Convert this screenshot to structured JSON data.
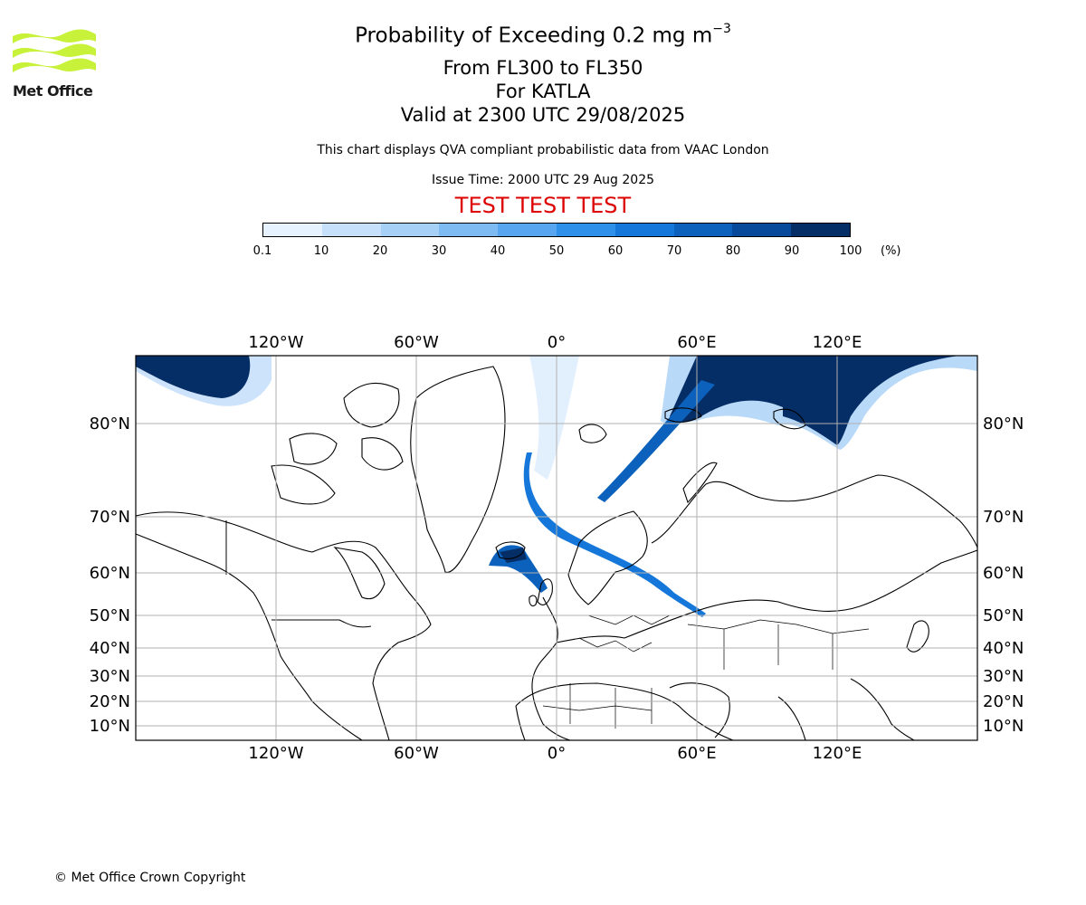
{
  "logo": {
    "wordmark": "Met Office",
    "accent_color": "#c8f23a"
  },
  "title": {
    "main": "Probability of Exceeding 0.2 mg m",
    "superscript": "−3",
    "line2": "From FL300 to FL350",
    "line3": "For KATLA",
    "line4": "Valid at 2300 UTC 29/08/2025"
  },
  "info": "This chart displays QVA compliant probabilistic data from VAAC London",
  "issue_time": "Issue Time: 2000 UTC 29 Aug 2025",
  "banner": {
    "text": "TEST TEST TEST",
    "color": "#dd0000"
  },
  "colorbar": {
    "ticks": [
      "0.1",
      "10",
      "20",
      "30",
      "40",
      "50",
      "60",
      "70",
      "80",
      "90",
      "100"
    ],
    "unit": "(%)",
    "colors": [
      "#e6f2ff",
      "#c6e0fb",
      "#a7d0f7",
      "#7fbbf3",
      "#57a6ef",
      "#2f90ea",
      "#1577d9",
      "#0b61bc",
      "#07499a",
      "#062e66"
    ]
  },
  "map": {
    "lon_labels_top": [
      "120°W",
      "60°W",
      "0°",
      "60°E",
      "120°E"
    ],
    "lon_labels_bottom": [
      "120°W",
      "60°W",
      "0°",
      "60°E",
      "120°E"
    ],
    "lat_labels_left": [
      "80°N",
      "70°N",
      "60°N",
      "50°N",
      "40°N",
      "30°N",
      "20°N",
      "10°N"
    ],
    "lat_labels_right": [
      "80°N",
      "70°N",
      "60°N",
      "50°N",
      "40°N",
      "30°N",
      "20°N",
      "10°N"
    ],
    "gridline_color": "#b0b0b0"
  },
  "copyright": "© Met Office Crown Copyright"
}
